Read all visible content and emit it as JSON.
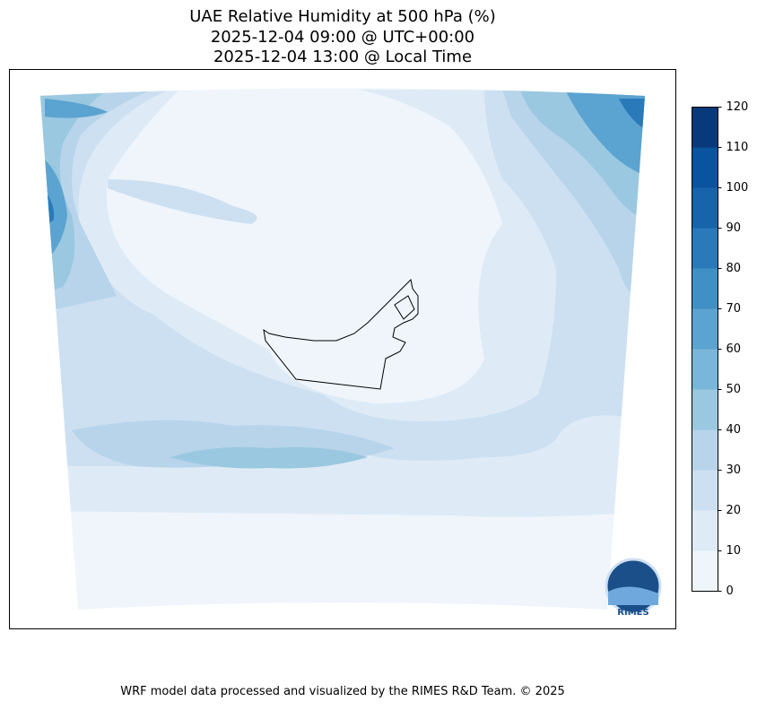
{
  "header": {
    "title_lines": [
      "UAE Relative Humidity at 500 hPa (%)",
      "2025-12-04 09:00 @ UTC+00:00",
      "2025-12-04 13:00 @ Local Time"
    ]
  },
  "colorbar": {
    "ticks": [
      0,
      10,
      20,
      30,
      40,
      50,
      60,
      70,
      80,
      90,
      100,
      110,
      120
    ],
    "colors": [
      "#eff5fb",
      "#deebf7",
      "#cde0f1",
      "#b7d4ea",
      "#9ac8e0",
      "#7ab6d9",
      "#5ba3d0",
      "#4190c5",
      "#2a7aba",
      "#1764ab",
      "#0a539e",
      "#08397a"
    ]
  },
  "logo": {
    "text": "RIMES"
  },
  "footer": "WRF model data processed and visualized by the RIMES R&D Team. © 2025"
}
